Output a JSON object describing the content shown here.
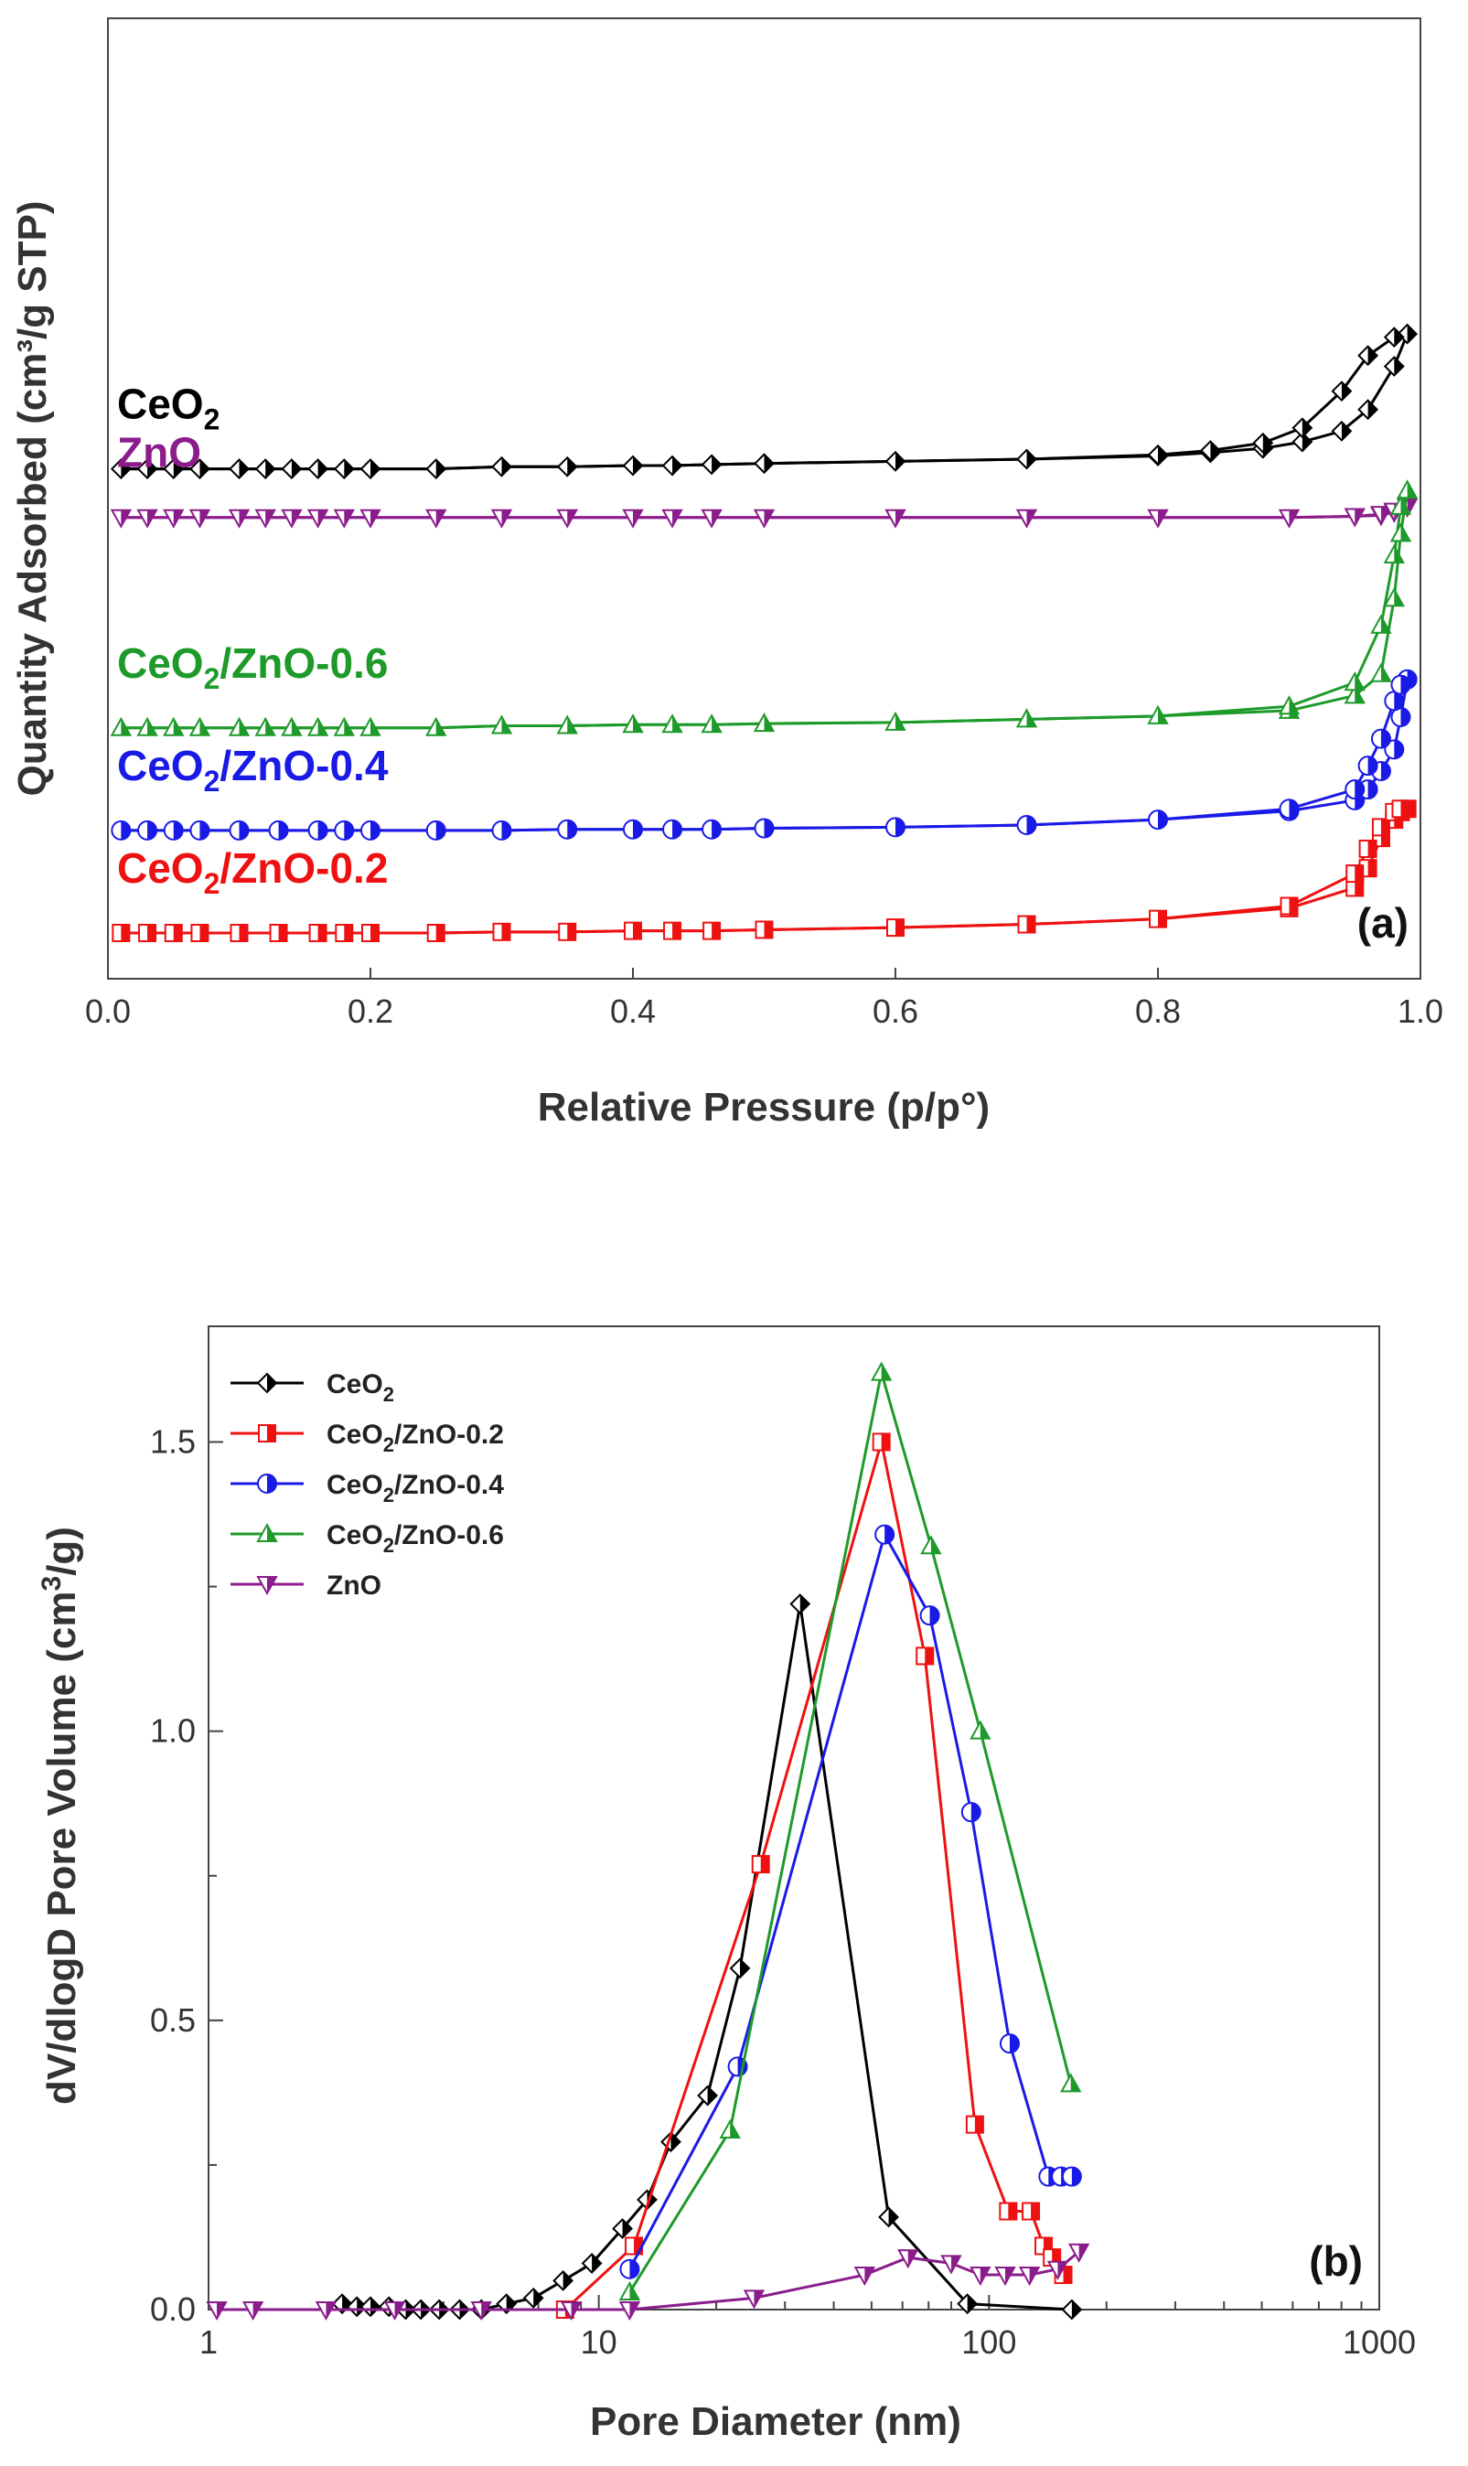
{
  "chart_data": [
    {
      "type": "line",
      "panel": "(a)",
      "xlabel": "Relative Pressure (p/p°)",
      "ylabel": "Quantity Adsorbed (cm³/g STP)",
      "xlim": [
        0.0,
        1.0
      ],
      "xticks": [
        "0.0",
        "0.2",
        "0.4",
        "0.6",
        "0.8",
        "1.0"
      ],
      "y_tick_labels": false,
      "legend": "inline labels, left of each curve",
      "series": [
        {
          "name": "CeO2",
          "label_main": "CeO",
          "label_sub": "2",
          "label_tail": "",
          "color": "#000000",
          "marker": "diamond",
          "offset": 4.3,
          "x": [
            0.01,
            0.03,
            0.05,
            0.07,
            0.1,
            0.12,
            0.14,
            0.16,
            0.18,
            0.2,
            0.25,
            0.3,
            0.35,
            0.4,
            0.43,
            0.46,
            0.5,
            0.6,
            0.7,
            0.8,
            0.84,
            0.88,
            0.91,
            0.94,
            0.96,
            0.98,
            0.99
          ],
          "adsorption": [
            0.0,
            0.0,
            0.0,
            0.0,
            0.0,
            0.0,
            0.0,
            0.0,
            0.0,
            0.0,
            0.0,
            0.02,
            0.02,
            0.03,
            0.03,
            0.04,
            0.05,
            0.07,
            0.09,
            0.12,
            0.15,
            0.19,
            0.25,
            0.35,
            0.55,
            0.95,
            1.25
          ],
          "desorption": [
            0.0,
            0.0,
            0.0,
            0.0,
            0.0,
            0.0,
            0.0,
            0.0,
            0.0,
            0.0,
            0.0,
            0.02,
            0.02,
            0.03,
            0.03,
            0.04,
            0.05,
            0.07,
            0.09,
            0.13,
            0.17,
            0.24,
            0.38,
            0.72,
            1.05,
            1.22,
            1.25
          ]
        },
        {
          "name": "ZnO",
          "label_main": "ZnO",
          "label_sub": "",
          "label_tail": "",
          "color": "#8B1C8B",
          "marker": "triangle-down",
          "offset": 3.85,
          "x": [
            0.01,
            0.03,
            0.05,
            0.07,
            0.1,
            0.12,
            0.14,
            0.16,
            0.18,
            0.2,
            0.25,
            0.3,
            0.35,
            0.4,
            0.43,
            0.46,
            0.5,
            0.6,
            0.7,
            0.8,
            0.9,
            0.95,
            0.97,
            0.98,
            0.99
          ],
          "adsorption": [
            0.0,
            0.0,
            0.0,
            0.0,
            0.0,
            0.0,
            0.0,
            0.0,
            0.0,
            0.0,
            0.0,
            0.0,
            0.0,
            0.0,
            0.0,
            0.0,
            0.0,
            0.0,
            0.0,
            0.0,
            0.0,
            0.01,
            0.02,
            0.05,
            0.1
          ],
          "desorption": [
            0.0,
            0.0,
            0.0,
            0.0,
            0.0,
            0.0,
            0.0,
            0.0,
            0.0,
            0.0,
            0.0,
            0.0,
            0.0,
            0.0,
            0.0,
            0.0,
            0.0,
            0.0,
            0.0,
            0.0,
            0.0,
            0.01,
            0.03,
            0.06,
            0.1
          ]
        },
        {
          "name": "CeO2/ZnO-0.6",
          "label_main": "CeO",
          "label_sub": "2",
          "label_tail": "/ZnO-0.6",
          "color": "#1E9A2A",
          "marker": "triangle-up",
          "offset": 1.9,
          "x": [
            0.01,
            0.03,
            0.05,
            0.07,
            0.1,
            0.12,
            0.14,
            0.16,
            0.18,
            0.2,
            0.25,
            0.3,
            0.35,
            0.4,
            0.43,
            0.46,
            0.5,
            0.6,
            0.7,
            0.8,
            0.9,
            0.95,
            0.97,
            0.98,
            0.985,
            0.99
          ],
          "adsorption": [
            0.0,
            0.0,
            0.0,
            0.0,
            0.0,
            0.0,
            0.0,
            0.0,
            0.0,
            0.0,
            0.0,
            0.02,
            0.02,
            0.03,
            0.03,
            0.03,
            0.04,
            0.05,
            0.08,
            0.11,
            0.16,
            0.3,
            0.5,
            1.2,
            1.8,
            2.2
          ],
          "desorption": [
            0.0,
            0.0,
            0.0,
            0.0,
            0.0,
            0.0,
            0.0,
            0.0,
            0.0,
            0.0,
            0.0,
            0.02,
            0.02,
            0.03,
            0.03,
            0.03,
            0.04,
            0.05,
            0.08,
            0.11,
            0.2,
            0.42,
            0.95,
            1.6,
            2.05,
            2.2
          ]
        },
        {
          "name": "CeO2/ZnO-0.4",
          "label_main": "CeO",
          "label_sub": "2",
          "label_tail": "/ZnO-0.4",
          "color": "#1A1AE6",
          "marker": "circle",
          "offset": 0.95,
          "x": [
            0.01,
            0.03,
            0.05,
            0.07,
            0.1,
            0.13,
            0.16,
            0.18,
            0.2,
            0.25,
            0.3,
            0.35,
            0.4,
            0.43,
            0.46,
            0.5,
            0.6,
            0.7,
            0.8,
            0.9,
            0.95,
            0.96,
            0.97,
            0.98,
            0.985,
            0.99
          ],
          "adsorption": [
            0.0,
            0.0,
            0.0,
            0.0,
            0.0,
            0.0,
            0.0,
            0.0,
            0.0,
            0.0,
            0.0,
            0.01,
            0.01,
            0.01,
            0.01,
            0.02,
            0.03,
            0.05,
            0.1,
            0.18,
            0.28,
            0.38,
            0.55,
            0.75,
            1.05,
            1.4
          ],
          "desorption": [
            0.0,
            0.0,
            0.0,
            0.0,
            0.0,
            0.0,
            0.0,
            0.0,
            0.0,
            0.0,
            0.0,
            0.01,
            0.01,
            0.01,
            0.01,
            0.02,
            0.03,
            0.05,
            0.1,
            0.2,
            0.38,
            0.6,
            0.85,
            1.2,
            1.35,
            1.4
          ]
        },
        {
          "name": "CeO2/ZnO-0.2",
          "label_main": "CeO",
          "label_sub": "2",
          "label_tail": "/ZnO-0.2",
          "color": "#EE1111",
          "marker": "square",
          "offset": 0.0,
          "x": [
            0.01,
            0.03,
            0.05,
            0.07,
            0.1,
            0.13,
            0.16,
            0.18,
            0.2,
            0.25,
            0.3,
            0.35,
            0.4,
            0.43,
            0.46,
            0.5,
            0.6,
            0.7,
            0.8,
            0.9,
            0.95,
            0.96,
            0.97,
            0.98,
            0.985,
            0.99
          ],
          "adsorption": [
            0.0,
            0.0,
            0.0,
            0.0,
            0.0,
            0.0,
            0.0,
            0.0,
            0.0,
            0.0,
            0.01,
            0.01,
            0.02,
            0.02,
            0.02,
            0.03,
            0.05,
            0.08,
            0.13,
            0.23,
            0.42,
            0.6,
            0.88,
            1.05,
            1.12,
            1.15
          ],
          "desorption": [
            0.0,
            0.0,
            0.0,
            0.0,
            0.0,
            0.0,
            0.0,
            0.0,
            0.0,
            0.0,
            0.01,
            0.01,
            0.02,
            0.02,
            0.02,
            0.03,
            0.05,
            0.08,
            0.13,
            0.25,
            0.55,
            0.78,
            0.98,
            1.12,
            1.15,
            1.15
          ]
        }
      ]
    },
    {
      "type": "line",
      "panel": "(b)",
      "xlabel": "Pore Diameter  (nm)",
      "ylabel_main": "dV/dlogD Pore Volume (cm",
      "ylabel_sup": "3",
      "ylabel_tail": "/g)",
      "xscale": "log",
      "xlim": [
        1,
        1000
      ],
      "ylim": [
        0.0,
        1.7
      ],
      "xticks": [
        1,
        10,
        100,
        1000
      ],
      "xtick_labels": [
        "1",
        "10",
        "100",
        "1000"
      ],
      "yticks": [
        0.0,
        0.5,
        1.0,
        1.5
      ],
      "ytick_labels": [
        "0.0",
        "0.5",
        "1.0",
        "1.5"
      ],
      "legend": "top-left",
      "series": [
        {
          "name": "CeO2",
          "label_main": "CeO",
          "label_sub": "2",
          "label_tail": "",
          "color": "#000000",
          "marker": "diamond",
          "x": [
            2.2,
            2.4,
            2.6,
            2.9,
            3.2,
            3.5,
            3.9,
            4.4,
            5.0,
            5.8,
            6.8,
            8.1,
            9.6,
            11.5,
            13.3,
            15.3,
            19.0,
            23.0,
            32.8,
            55.3,
            88.0,
            163.0
          ],
          "values": [
            0.01,
            0.005,
            0.005,
            0.005,
            0.0,
            0.0,
            0.0,
            0.0,
            0.0,
            0.01,
            0.02,
            0.05,
            0.08,
            0.14,
            0.19,
            0.29,
            0.37,
            0.59,
            1.22,
            0.16,
            0.01,
            0.0
          ]
        },
        {
          "name": "CeO2/ZnO-0.2",
          "label_main": "CeO",
          "label_sub": "2",
          "label_tail": "/ZnO-0.2",
          "color": "#EE1111",
          "marker": "square",
          "x": [
            8.2,
            12.3,
            26.0,
            53.0,
            68.5,
            92.0,
            112.0,
            128.0,
            138.0,
            145.0,
            155.0
          ],
          "values": [
            0.0,
            0.11,
            0.77,
            1.5,
            1.13,
            0.32,
            0.17,
            0.17,
            0.11,
            0.09,
            0.06
          ]
        },
        {
          "name": "CeO2/ZnO-0.4",
          "label_main": "CeO",
          "label_sub": "2",
          "label_tail": "/ZnO-0.4",
          "color": "#1A1AE6",
          "marker": "circle",
          "x": [
            12.0,
            22.7,
            54.0,
            70.5,
            90.0,
            113.0,
            142.0,
            153.0,
            163.0
          ],
          "values": [
            0.07,
            0.42,
            1.34,
            1.2,
            0.86,
            0.46,
            0.23,
            0.23,
            0.23
          ]
        },
        {
          "name": "CeO2/ZnO-0.6",
          "label_main": "CeO",
          "label_sub": "2",
          "label_tail": "/ZnO-0.6",
          "color": "#1E9A2A",
          "marker": "triangle-up",
          "x": [
            12.0,
            21.7,
            53.0,
            71.0,
            95.0,
            162.0
          ],
          "values": [
            0.03,
            0.31,
            1.62,
            1.32,
            1.0,
            0.39
          ]
        },
        {
          "name": "ZnO",
          "label_main": "ZnO",
          "label_sub": "",
          "label_tail": "",
          "color": "#8B1C8B",
          "marker": "triangle-down",
          "x": [
            1.05,
            1.3,
            2.0,
            3.0,
            5.0,
            8.5,
            12.0,
            25.0,
            48.0,
            62.0,
            80.0,
            95.0,
            110.0,
            127.0,
            150.0,
            170.0
          ],
          "values": [
            0.0,
            0.0,
            0.0,
            0.0,
            0.0,
            0.0,
            0.0,
            0.02,
            0.06,
            0.09,
            0.08,
            0.06,
            0.06,
            0.06,
            0.07,
            0.1
          ]
        }
      ]
    }
  ]
}
